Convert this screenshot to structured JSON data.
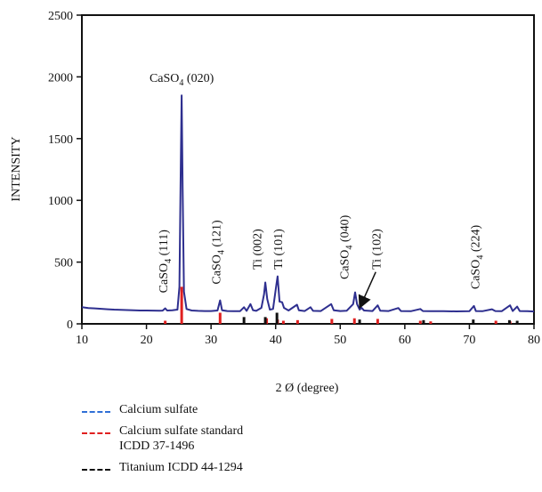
{
  "chart_data": {
    "type": "line",
    "xlabel": "2 Ø (degree)",
    "ylabel": "INTENSITY",
    "xlim": [
      10,
      80
    ],
    "ylim": [
      0,
      2500
    ],
    "xticks": [
      10,
      20,
      30,
      40,
      50,
      60,
      70,
      80
    ],
    "yticks": [
      0,
      500,
      1000,
      1500,
      2000,
      2500
    ],
    "grid": false,
    "legend_position": "bottom-left, below plot",
    "series": [
      {
        "name": "Calcium sulfate",
        "color": "#2e2f8f",
        "style": "line",
        "points": [
          [
            10,
            135
          ],
          [
            11,
            128
          ],
          [
            12,
            125
          ],
          [
            13,
            122
          ],
          [
            14,
            118
          ],
          [
            15,
            115
          ],
          [
            16,
            114
          ],
          [
            17,
            112
          ],
          [
            18,
            110
          ],
          [
            19,
            108
          ],
          [
            20,
            108
          ],
          [
            21,
            107
          ],
          [
            22,
            106
          ],
          [
            22.5,
            107
          ],
          [
            22.9,
            125
          ],
          [
            23.2,
            108
          ],
          [
            24,
            110
          ],
          [
            24.8,
            115
          ],
          [
            25.1,
            300
          ],
          [
            25.3,
            1200
          ],
          [
            25.45,
            1850
          ],
          [
            25.6,
            1100
          ],
          [
            25.8,
            260
          ],
          [
            26.2,
            120
          ],
          [
            27,
            108
          ],
          [
            28,
            105
          ],
          [
            29,
            104
          ],
          [
            30,
            104
          ],
          [
            31,
            108
          ],
          [
            31.4,
            190
          ],
          [
            31.7,
            110
          ],
          [
            32.5,
            104
          ],
          [
            33.5,
            102
          ],
          [
            34.5,
            103
          ],
          [
            35.1,
            135
          ],
          [
            35.5,
            105
          ],
          [
            36.1,
            160
          ],
          [
            36.5,
            110
          ],
          [
            37,
            105
          ],
          [
            37.8,
            130
          ],
          [
            38.2,
            240
          ],
          [
            38.4,
            335
          ],
          [
            38.7,
            200
          ],
          [
            39.1,
            115
          ],
          [
            39.6,
            120
          ],
          [
            40.1,
            310
          ],
          [
            40.3,
            385
          ],
          [
            40.6,
            180
          ],
          [
            41.0,
            175
          ],
          [
            41.3,
            130
          ],
          [
            42,
            108
          ],
          [
            43.3,
            155
          ],
          [
            43.6,
            110
          ],
          [
            44.5,
            104
          ],
          [
            45.4,
            135
          ],
          [
            45.8,
            105
          ],
          [
            47,
            104
          ],
          [
            48.6,
            160
          ],
          [
            49,
            110
          ],
          [
            50,
            104
          ],
          [
            51,
            106
          ],
          [
            52.0,
            160
          ],
          [
            52.3,
            255
          ],
          [
            52.6,
            160
          ],
          [
            53.0,
            115
          ],
          [
            53.3,
            130
          ],
          [
            53.7,
            108
          ],
          [
            55,
            104
          ],
          [
            55.8,
            150
          ],
          [
            56.2,
            106
          ],
          [
            57.5,
            104
          ],
          [
            59,
            128
          ],
          [
            59.4,
            104
          ],
          [
            61,
            103
          ],
          [
            62.4,
            120
          ],
          [
            62.8,
            104
          ],
          [
            64,
            102
          ],
          [
            66,
            102
          ],
          [
            68,
            101
          ],
          [
            70,
            102
          ],
          [
            70.7,
            145
          ],
          [
            71.0,
            104
          ],
          [
            72,
            102
          ],
          [
            73.5,
            118
          ],
          [
            74,
            104
          ],
          [
            75,
            102
          ],
          [
            76.3,
            150
          ],
          [
            76.7,
            104
          ],
          [
            77.4,
            140
          ],
          [
            77.8,
            104
          ],
          [
            79,
            102
          ],
          [
            80,
            100
          ]
        ]
      },
      {
        "name": "Calcium sulfate standard\nICDD 37-1496",
        "color": "#e02020",
        "style": "sticks",
        "sticks": [
          [
            22.9,
            25
          ],
          [
            25.45,
            300
          ],
          [
            31.4,
            90
          ],
          [
            38.6,
            45
          ],
          [
            40.3,
            35
          ],
          [
            41.2,
            25
          ],
          [
            43.4,
            30
          ],
          [
            48.7,
            40
          ],
          [
            52.2,
            45
          ],
          [
            55.8,
            40
          ],
          [
            62.4,
            25
          ],
          [
            64.0,
            20
          ],
          [
            74.1,
            25
          ],
          [
            76.3,
            20
          ]
        ]
      },
      {
        "name": "Titanium ICDD 44-1294",
        "color": "#111111",
        "style": "sticks",
        "sticks": [
          [
            35.1,
            55
          ],
          [
            38.4,
            55
          ],
          [
            40.2,
            90
          ],
          [
            53.0,
            35
          ],
          [
            62.9,
            30
          ],
          [
            70.6,
            35
          ],
          [
            76.2,
            30
          ],
          [
            77.4,
            25
          ]
        ]
      }
    ],
    "annotations": [
      {
        "x": 25.45,
        "y": 1960,
        "rotate": 0,
        "main": "CaSO",
        "sub": "4",
        "tail": " (020)"
      },
      {
        "x": 23.2,
        "y": 250,
        "rotate": -90,
        "main": "CaSO",
        "sub": "4",
        "tail": " (111)"
      },
      {
        "x": 31.4,
        "y": 320,
        "rotate": -90,
        "main": "CaSO",
        "sub": "4",
        "tail": " (121)"
      },
      {
        "x": 37.8,
        "y": 440,
        "rotate": -90,
        "main": "Ti (002)",
        "sub": "",
        "tail": ""
      },
      {
        "x": 41.0,
        "y": 440,
        "rotate": -90,
        "main": "Ti (101)",
        "sub": "",
        "tail": ""
      },
      {
        "x": 51.3,
        "y": 360,
        "rotate": -90,
        "main": "CaSO",
        "sub": "4",
        "tail": " (040)"
      },
      {
        "x": 56.2,
        "y": 440,
        "rotate": -90,
        "main": "Ti (102)",
        "sub": "",
        "tail": ""
      },
      {
        "x": 71.5,
        "y": 280,
        "rotate": -90,
        "main": "CaSO",
        "sub": "4",
        "tail": " (224)"
      }
    ],
    "arrow": {
      "from": [
        55.5,
        420
      ],
      "to": [
        53.1,
        140
      ]
    }
  },
  "legend": [
    {
      "label": "Calcium sulfate",
      "color": "#2f6fd6"
    },
    {
      "label": "Calcium sulfate standard\nICDD 37-1496",
      "color": "#e02020"
    },
    {
      "label": "Titanium ICDD 44-1294",
      "color": "#111111"
    }
  ]
}
